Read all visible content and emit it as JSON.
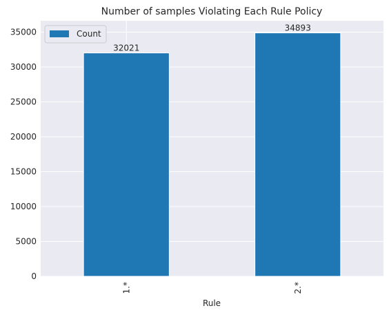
{
  "chart_data": {
    "type": "bar",
    "title": "Number of samples Violating Each Rule Policy",
    "xlabel": "Rule",
    "ylabel": "",
    "categories": [
      "1.*",
      "2.*"
    ],
    "series": [
      {
        "name": "Count",
        "values": [
          32021,
          34893
        ]
      }
    ],
    "data_labels": [
      "32021",
      "34893"
    ],
    "ylim": [
      0,
      36637
    ],
    "yticks": [
      0,
      5000,
      10000,
      15000,
      20000,
      25000,
      30000,
      35000
    ],
    "grid": true,
    "legend_position": "top-left",
    "colors": {
      "bar": "#1f77b4",
      "plot_background": "#eaeaf2",
      "grid": "#ffffff",
      "text": "#262626"
    }
  }
}
